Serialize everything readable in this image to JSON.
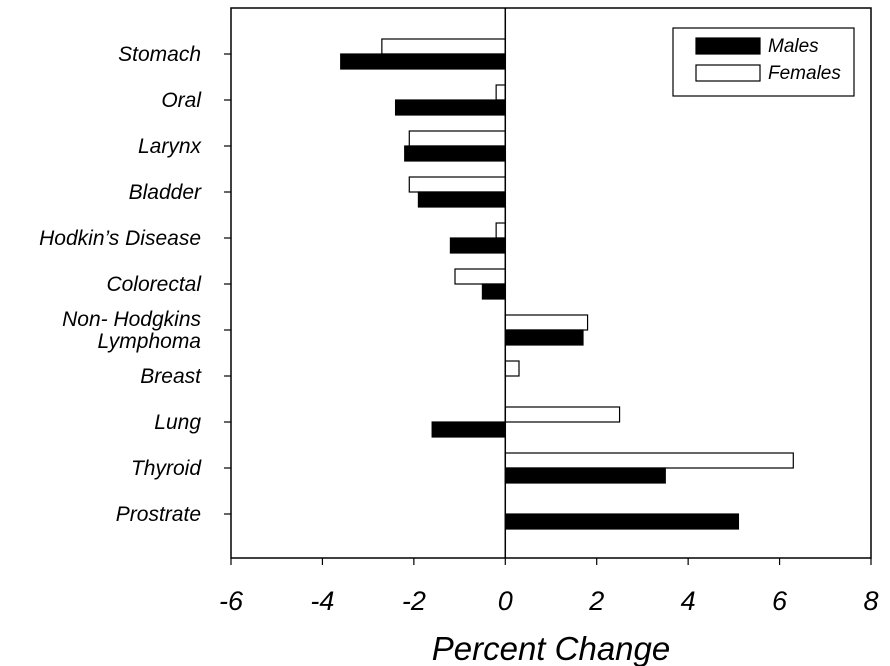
{
  "chart_data": {
    "type": "bar",
    "orientation": "horizontal",
    "categories": [
      "Stomach",
      "Oral",
      "Larynx",
      "Bladder",
      "Hodkin’s Disease",
      "Colorectal",
      "Non- Hodgkins Lymphoma",
      "Breast",
      "Lung",
      "Thyroid",
      "Prostrate"
    ],
    "category_lines": [
      [
        "Stomach"
      ],
      [
        "Oral"
      ],
      [
        "Larynx"
      ],
      [
        "Bladder"
      ],
      [
        "Hodkin’s Disease"
      ],
      [
        "Colorectal"
      ],
      [
        "Non- Hodgkins",
        "Lymphoma"
      ],
      [
        "Breast"
      ],
      [
        "Lung"
      ],
      [
        "Thyroid"
      ],
      [
        "Prostrate"
      ]
    ],
    "series": [
      {
        "name": "Males",
        "color": "#000000",
        "values": [
          -3.6,
          -2.4,
          -2.2,
          -1.9,
          -1.2,
          -0.5,
          1.7,
          0,
          -1.6,
          3.5,
          5.1
        ]
      },
      {
        "name": "Females",
        "color": "#ffffff",
        "values": [
          -2.7,
          -0.2,
          -2.1,
          -2.1,
          -0.2,
          -1.1,
          1.8,
          0.3,
          2.5,
          6.3,
          0
        ]
      }
    ],
    "xlabel": "Percent Change",
    "ylabel": "",
    "xlim": [
      -6,
      8
    ],
    "xticks": [
      -6,
      -4,
      -2,
      0,
      2,
      4,
      6,
      8
    ],
    "legend": {
      "position": "top-right"
    },
    "grid": false
  }
}
